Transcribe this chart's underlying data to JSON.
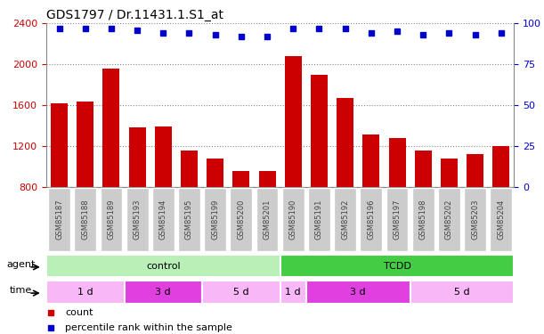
{
  "title": "GDS1797 / Dr.11431.1.S1_at",
  "samples": [
    "GSM85187",
    "GSM85188",
    "GSM85189",
    "GSM85193",
    "GSM85194",
    "GSM85195",
    "GSM85199",
    "GSM85200",
    "GSM85201",
    "GSM85190",
    "GSM85191",
    "GSM85192",
    "GSM85196",
    "GSM85197",
    "GSM85198",
    "GSM85202",
    "GSM85203",
    "GSM85204"
  ],
  "counts": [
    1620,
    1640,
    1960,
    1380,
    1390,
    1160,
    1080,
    960,
    960,
    2080,
    1900,
    1670,
    1310,
    1280,
    1160,
    1080,
    1120,
    1200
  ],
  "percentiles": [
    97,
    97,
    97,
    96,
    94,
    94,
    93,
    92,
    92,
    97,
    97,
    97,
    94,
    95,
    93,
    94,
    93,
    94
  ],
  "ylim_left": [
    800,
    2400
  ],
  "ylim_right": [
    0,
    100
  ],
  "yticks_left": [
    800,
    1200,
    1600,
    2000,
    2400
  ],
  "yticks_right": [
    0,
    25,
    50,
    75,
    100
  ],
  "bar_color": "#cc0000",
  "dot_color": "#0000cc",
  "agent_groups": [
    {
      "label": "control",
      "start": 0,
      "end": 9,
      "color": "#b8f0b8"
    },
    {
      "label": "TCDD",
      "start": 9,
      "end": 18,
      "color": "#44cc44"
    }
  ],
  "time_groups": [
    {
      "label": "1 d",
      "start": 0,
      "end": 3,
      "color": "#f8b8f8"
    },
    {
      "label": "3 d",
      "start": 3,
      "end": 6,
      "color": "#e040e0"
    },
    {
      "label": "5 d",
      "start": 6,
      "end": 9,
      "color": "#f8b8f8"
    },
    {
      "label": "1 d",
      "start": 9,
      "end": 10,
      "color": "#f8b8f8"
    },
    {
      "label": "3 d",
      "start": 10,
      "end": 14,
      "color": "#e040e0"
    },
    {
      "label": "5 d",
      "start": 14,
      "end": 18,
      "color": "#f8b8f8"
    }
  ],
  "legend_items": [
    {
      "label": "count",
      "color": "#cc0000"
    },
    {
      "label": "percentile rank within the sample",
      "color": "#0000cc"
    }
  ],
  "title_fontsize": 10,
  "axis_label_color_left": "#cc0000",
  "axis_label_color_right": "#0000cc",
  "background_color": "#ffffff",
  "grid_color": "#888888",
  "tick_label_bg": "#cccccc",
  "tick_label_color": "#444444"
}
